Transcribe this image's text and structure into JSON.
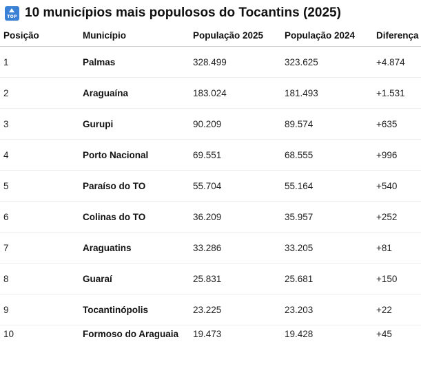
{
  "icon": {
    "name": "top-icon",
    "text": "TOP",
    "color": "#3b82d6"
  },
  "title": "10 municípios mais populosos do Tocantins (2025)",
  "table": {
    "headers": [
      "Posição",
      "Município",
      "População 2025",
      "População 2024",
      "Diferença"
    ],
    "rows": [
      {
        "pos": "1",
        "name": "Palmas",
        "p2025": "328.499",
        "p2024": "323.625",
        "diff": "+4.874"
      },
      {
        "pos": "2",
        "name": "Araguaína",
        "p2025": "183.024",
        "p2024": "181.493",
        "diff": "+1.531"
      },
      {
        "pos": "3",
        "name": "Gurupi",
        "p2025": "90.209",
        "p2024": "89.574",
        "diff": "+635"
      },
      {
        "pos": "4",
        "name": "Porto Nacional",
        "p2025": "69.551",
        "p2024": "68.555",
        "diff": "+996"
      },
      {
        "pos": "5",
        "name": "Paraíso do TO",
        "p2025": "55.704",
        "p2024": "55.164",
        "diff": "+540"
      },
      {
        "pos": "6",
        "name": "Colinas do TO",
        "p2025": "36.209",
        "p2024": "35.957",
        "diff": "+252"
      },
      {
        "pos": "7",
        "name": "Araguatins",
        "p2025": "33.286",
        "p2024": "33.205",
        "diff": "+81"
      },
      {
        "pos": "8",
        "name": "Guaraí",
        "p2025": "25.831",
        "p2024": "25.681",
        "diff": "+150"
      },
      {
        "pos": "9",
        "name": "Tocantinópolis",
        "p2025": "23.225",
        "p2024": "23.203",
        "diff": "+22"
      },
      {
        "pos": "10",
        "name": "Formoso do Araguaia",
        "p2025": "19.473",
        "p2024": "19.428",
        "diff": "+45"
      }
    ]
  }
}
